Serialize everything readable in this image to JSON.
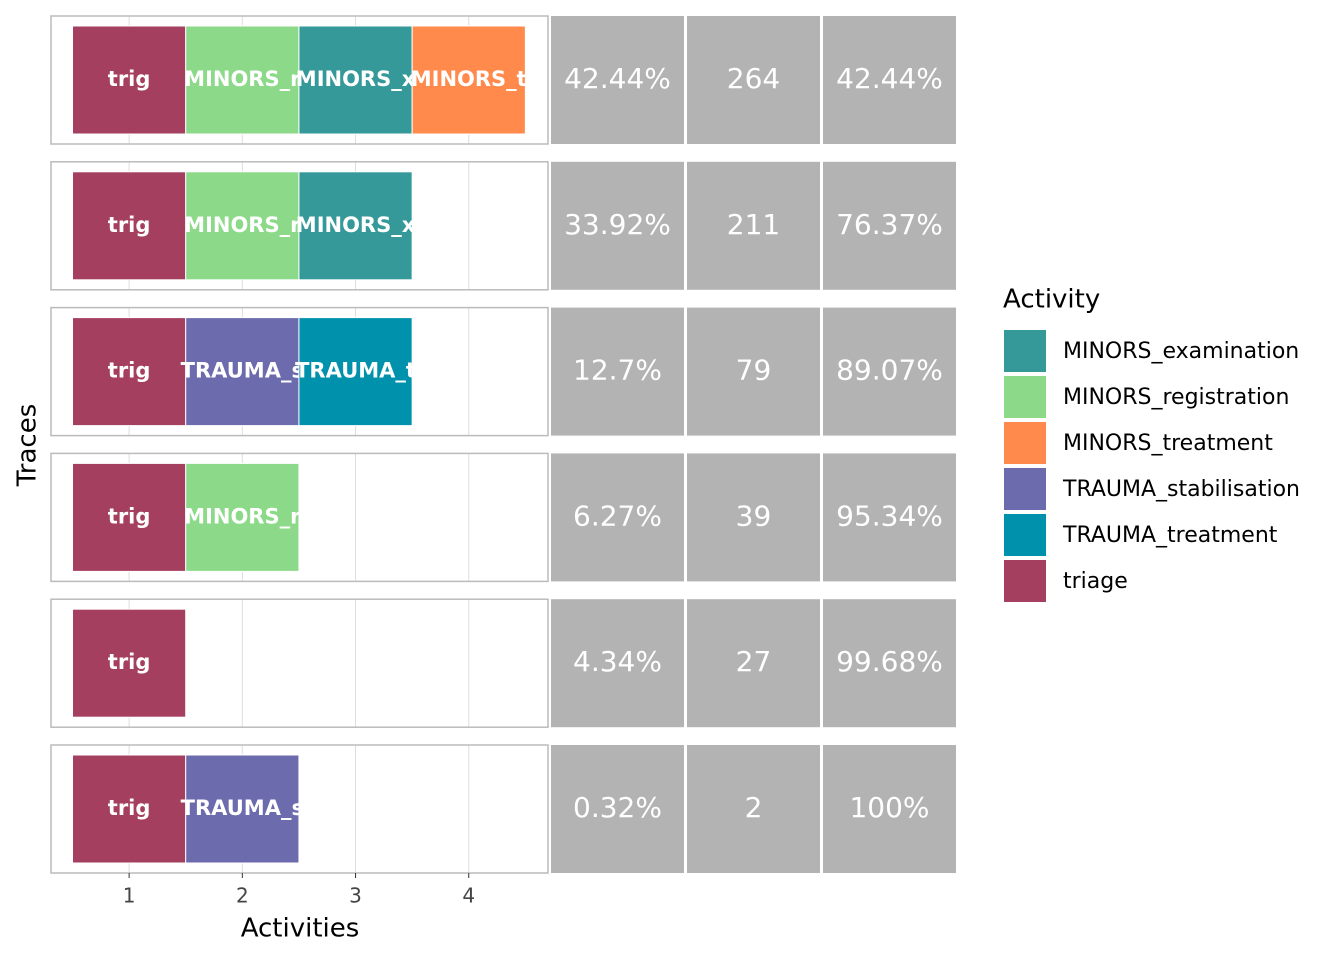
{
  "chart_data": {
    "type": "trace",
    "x_label": "Activities",
    "y_label": "Traces",
    "xlim": [
      0.31,
      4.7
    ],
    "xticks": [
      1,
      2,
      3,
      4
    ],
    "grid": true,
    "traces": [
      {
        "activities": [
          "triage",
          "MINORS_registration",
          "MINORS_examination",
          "MINORS_treatment"
        ],
        "labels": [
          "trig",
          "MINORS_r",
          "MINORS_x",
          "MINORS_t"
        ]
      },
      {
        "activities": [
          "triage",
          "MINORS_registration",
          "MINORS_examination"
        ],
        "labels": [
          "trig",
          "MINORS_r",
          "MINORS_x"
        ]
      },
      {
        "activities": [
          "triage",
          "TRAUMA_stabilisation",
          "TRAUMA_treatment"
        ],
        "labels": [
          "trig",
          "TRAUMA_s",
          "TRAUMA_t"
        ]
      },
      {
        "activities": [
          "triage",
          "MINORS_registration"
        ],
        "labels": [
          "trig",
          "MINORS_r"
        ]
      },
      {
        "activities": [
          "triage"
        ],
        "labels": [
          "trig"
        ]
      },
      {
        "activities": [
          "triage",
          "TRAUMA_stabilisation"
        ],
        "labels": [
          "trig",
          "TRAUMA_s"
        ]
      }
    ],
    "columns": [
      {
        "values": [
          42.44,
          33.92,
          12.7,
          6.27,
          4.34,
          0.32
        ],
        "value_labels": [
          "42.44%",
          "33.92%",
          "12.7%",
          "6.27%",
          "4.34%",
          "0.32%"
        ]
      },
      {
        "values": [
          264,
          211,
          79,
          39,
          27,
          2
        ]
      },
      {
        "values": [
          42.44,
          76.37,
          89.07,
          95.34,
          99.68,
          100
        ],
        "value_labels": [
          "42.44%",
          "76.37%",
          "89.07%",
          "95.34%",
          "99.68%",
          "100%"
        ]
      }
    ],
    "column_color": "#b3b3b3",
    "legend": {
      "title": "Activity",
      "items": [
        {
          "name": "MINORS_examination",
          "color": "#35999a"
        },
        {
          "name": "MINORS_registration",
          "color": "#8cda89"
        },
        {
          "name": "MINORS_treatment",
          "color": "#ff8a4c"
        },
        {
          "name": "TRAUMA_stabilisation",
          "color": "#6c6bad"
        },
        {
          "name": "TRAUMA_treatment",
          "color": "#0091ac"
        },
        {
          "name": "triage",
          "color": "#a53f60"
        }
      ]
    }
  }
}
